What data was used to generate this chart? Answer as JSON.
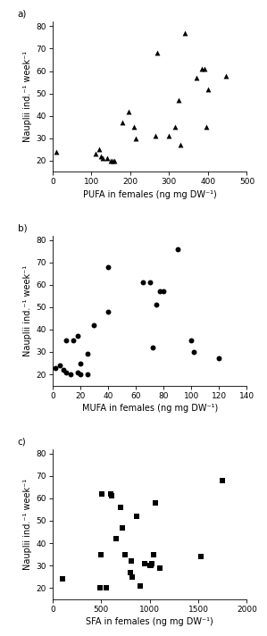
{
  "panel_a": {
    "label": "a)",
    "x": [
      10,
      110,
      120,
      125,
      130,
      140,
      150,
      155,
      160,
      180,
      195,
      210,
      215,
      265,
      270,
      300,
      315,
      325,
      330,
      340,
      370,
      385,
      390,
      395,
      400,
      445
    ],
    "y": [
      24,
      23,
      25,
      22,
      21,
      21,
      20,
      20,
      20,
      37,
      42,
      35,
      30,
      31,
      68,
      31,
      35,
      47,
      27,
      77,
      57,
      61,
      61,
      35,
      52,
      58
    ],
    "marker": "^",
    "xlabel": "PUFA in females (ng mg DW⁻¹)",
    "ylabel": "Nauplii ind.⁻¹ week⁻¹",
    "xlim": [
      0,
      500
    ],
    "ylim": [
      15,
      82
    ],
    "xticks": [
      0,
      100,
      200,
      300,
      400,
      500
    ],
    "yticks": [
      20,
      30,
      40,
      50,
      60,
      70,
      80
    ]
  },
  "panel_b": {
    "label": "b)",
    "x": [
      2,
      5,
      8,
      10,
      10,
      13,
      15,
      18,
      18,
      20,
      20,
      25,
      25,
      30,
      40,
      40,
      65,
      70,
      72,
      75,
      77,
      80,
      90,
      100,
      102,
      120
    ],
    "y": [
      23,
      24,
      22,
      35,
      21,
      20,
      35,
      37,
      21,
      25,
      20,
      29,
      20,
      42,
      68,
      48,
      61,
      61,
      32,
      51,
      57,
      57,
      76,
      35,
      30,
      27
    ],
    "marker": "o",
    "xlabel": "MUFA in females (ng mg DW⁻¹)",
    "ylabel": "Nauplii ind.⁻¹ week⁻¹",
    "xlim": [
      0,
      140
    ],
    "ylim": [
      15,
      82
    ],
    "xticks": [
      0,
      20,
      40,
      60,
      80,
      100,
      120,
      140
    ],
    "yticks": [
      20,
      30,
      40,
      50,
      60,
      70,
      80
    ]
  },
  "panel_c": {
    "label": "c)",
    "x": [
      100,
      490,
      500,
      510,
      550,
      600,
      610,
      650,
      700,
      720,
      750,
      800,
      810,
      820,
      870,
      900,
      950,
      1000,
      1010,
      1020,
      1040,
      1060,
      1100,
      1530,
      1750
    ],
    "y": [
      24,
      20,
      35,
      62,
      20,
      62,
      61,
      42,
      56,
      47,
      35,
      27,
      32,
      25,
      52,
      21,
      31,
      30,
      30,
      31,
      35,
      58,
      29,
      34,
      68
    ],
    "marker": "s",
    "xlabel": "SFA in females (ng mg DW⁻¹)",
    "ylabel": "Nauplii ind.⁻¹ week⁻¹",
    "xlim": [
      0,
      2000
    ],
    "ylim": [
      15,
      82
    ],
    "xticks": [
      0,
      500,
      1000,
      1500,
      2000
    ],
    "yticks": [
      20,
      30,
      40,
      50,
      60,
      70,
      80
    ]
  },
  "marker_size": 18,
  "marker_color": "black",
  "tick_fontsize": 6.5,
  "label_fontsize": 7,
  "panel_label_fontsize": 7.5
}
